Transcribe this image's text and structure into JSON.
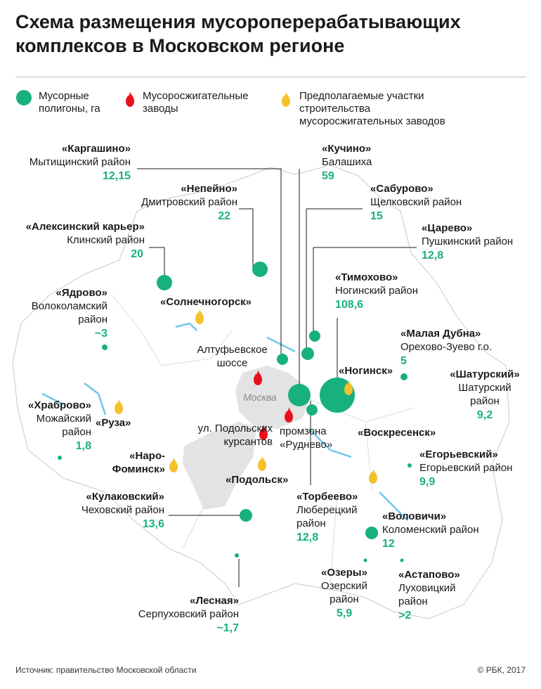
{
  "title": "Схема размещения мусороперерабатывающих комплексов в Московском регионе",
  "legend": {
    "landfills": "Мусорные полигоны, га",
    "incinerators": "Мусоросжигательные заводы",
    "planned": "Предполагаемые участки строительства мусоросжигательных заводов"
  },
  "colors": {
    "landfill": "#17b07e",
    "incinerator": "#e8101b",
    "planned": "#f4c12a",
    "moscow": "#e3e3e3",
    "border": "#c9c9c9",
    "water": "#6ec6ef"
  },
  "moscow_label": "Москва",
  "landfills": [
    {
      "name": "«Каргашино»",
      "region": "Мытищинский район",
      "value": "12,15"
    },
    {
      "name": "«Кучино»",
      "region": "Балашиха",
      "value": "59"
    },
    {
      "name": "«Непейно»",
      "region": "Дмитровский район",
      "value": "22"
    },
    {
      "name": "«Сабурово»",
      "region": "Щелковский район",
      "value": "15"
    },
    {
      "name": "«Алексинский карьер»",
      "region": "Клинский район",
      "value": "20"
    },
    {
      "name": "«Царево»",
      "region": "Пушкинский район",
      "value": "12,8"
    },
    {
      "name": "«Тимохово»",
      "region": "Ногинский район",
      "value": "108,6"
    },
    {
      "name": "«Ядрово»",
      "region": "Волоколамский район",
      "value": "~3"
    },
    {
      "name": "«Малая Дубна»",
      "region": "Орехово-Зуево г.о.",
      "value": "5"
    },
    {
      "name": "«Шатурский»",
      "region": "Шатурский район",
      "value": "9,2"
    },
    {
      "name": "«Храброво»",
      "region": "Можайский район",
      "value": "1,8"
    },
    {
      "name": "«Егорьевский»",
      "region": "Егорьевский район",
      "value": "9,9"
    },
    {
      "name": "«Кулаковский»",
      "region": "Чеховский район",
      "value": "13,6"
    },
    {
      "name": "«Торбеево»",
      "region": "Люберецкий район",
      "value": "12,8"
    },
    {
      "name": "«Воловичи»",
      "region": "Коломенский район",
      "value": "12"
    },
    {
      "name": "«Озеры»",
      "region": "Озерский район",
      "value": "5,9"
    },
    {
      "name": "«Астапово»",
      "region": "Луховицкий район",
      "value": ">2"
    },
    {
      "name": "«Лесная»",
      "region": "Серпуховский район",
      "value": "~1,7"
    }
  ],
  "incinerators": [
    "Алтуфьевское шоссе",
    "ул. Подольских курсантов",
    "промзона «Руднево»"
  ],
  "planned_sites": [
    "«Солнечногорск»",
    "«Ногинск»",
    "«Руза»",
    "«Наро-Фоминск»",
    "«Подольск»",
    "«Воскресенск»"
  ],
  "source": "Источник: правительство Московской области",
  "copyright": "© РБК, 2017"
}
